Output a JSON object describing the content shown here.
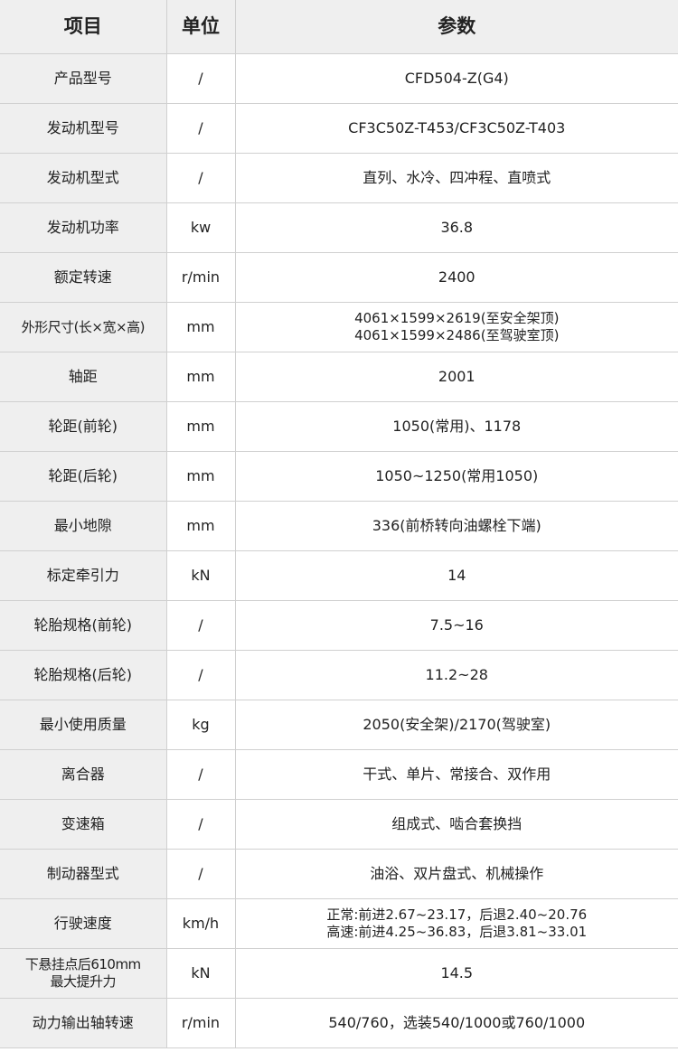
{
  "header": {
    "item": "项目",
    "unit": "单位",
    "value": "参数"
  },
  "rows": [
    {
      "item": [
        "产品型号"
      ],
      "unit": "/",
      "value": [
        "CFD504-Z(G4)"
      ]
    },
    {
      "item": [
        "发动机型号"
      ],
      "unit": "/",
      "value": [
        "CF3C50Z-T453/CF3C50Z-T403"
      ]
    },
    {
      "item": [
        "发动机型式"
      ],
      "unit": "/",
      "value": [
        "直列、水冷、四冲程、直喷式"
      ]
    },
    {
      "item": [
        "发动机功率"
      ],
      "unit": "kw",
      "value": [
        "36.8"
      ]
    },
    {
      "item": [
        "额定转速"
      ],
      "unit": "r/min",
      "value": [
        "2400"
      ]
    },
    {
      "item": [
        "外形尺寸(长×宽×高)"
      ],
      "unit": "mm",
      "value": [
        "4061×1599×2619(至安全架顶)",
        "4061×1599×2486(至驾驶室顶)"
      ]
    },
    {
      "item": [
        "轴距"
      ],
      "unit": "mm",
      "value": [
        "2001"
      ]
    },
    {
      "item": [
        "轮距(前轮)"
      ],
      "unit": "mm",
      "value": [
        "1050(常用)、1178"
      ]
    },
    {
      "item": [
        "轮距(后轮)"
      ],
      "unit": "mm",
      "value": [
        "1050~1250(常用1050)"
      ]
    },
    {
      "item": [
        "最小地隙"
      ],
      "unit": "mm",
      "value": [
        "336(前桥转向油螺栓下端)"
      ]
    },
    {
      "item": [
        "标定牵引力"
      ],
      "unit": "kN",
      "value": [
        "14"
      ]
    },
    {
      "item": [
        "轮胎规格(前轮)"
      ],
      "unit": "/",
      "value": [
        "7.5~16"
      ]
    },
    {
      "item": [
        "轮胎规格(后轮)"
      ],
      "unit": "/",
      "value": [
        "11.2~28"
      ]
    },
    {
      "item": [
        "最小使用质量"
      ],
      "unit": "kg",
      "value": [
        "2050(安全架)/2170(驾驶室)"
      ]
    },
    {
      "item": [
        "离合器"
      ],
      "unit": "/",
      "value": [
        "干式、单片、常接合、双作用"
      ]
    },
    {
      "item": [
        "变速箱"
      ],
      "unit": "/",
      "value": [
        "组成式、啮合套换挡"
      ]
    },
    {
      "item": [
        "制动器型式"
      ],
      "unit": "/",
      "value": [
        "油浴、双片盘式、机械操作"
      ]
    },
    {
      "item": [
        "行驶速度"
      ],
      "unit": "km/h",
      "value": [
        "正常:前进2.67~23.17，后退2.40~20.76",
        "高速:前进4.25~36.83，后退3.81~33.01"
      ]
    },
    {
      "item": [
        "下悬挂点后610mm",
        "最大提升力"
      ],
      "unit": "kN",
      "value": [
        "14.5"
      ]
    },
    {
      "item": [
        "动力输出轴转速"
      ],
      "unit": "r/min",
      "value": [
        "540/760，选装540/1000或760/1000"
      ]
    }
  ]
}
